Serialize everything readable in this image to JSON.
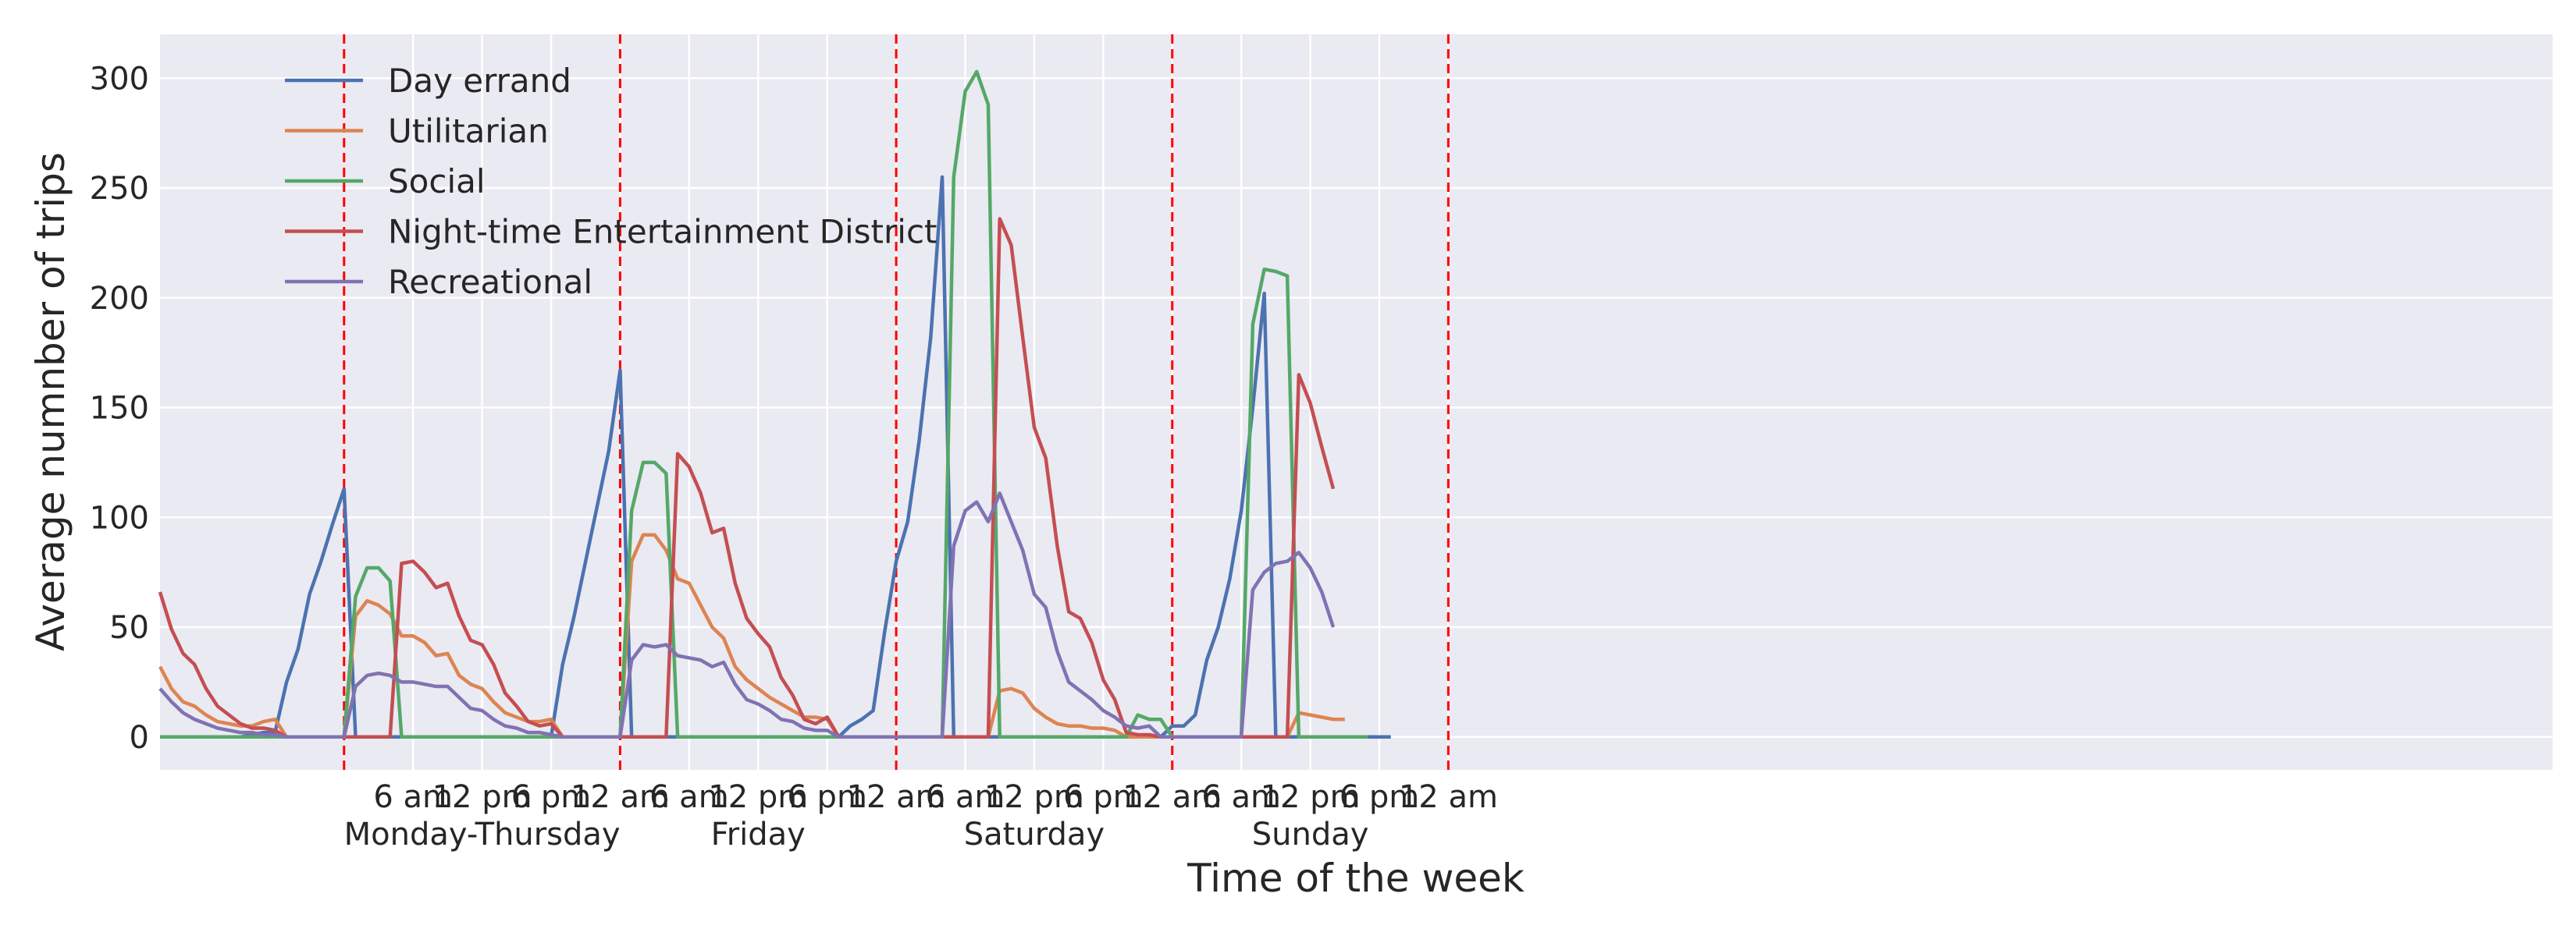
{
  "chart_data": {
    "type": "line",
    "xlabel": "Time of the week",
    "ylabel": "Average numnber of trips",
    "ylim": [
      -15,
      320
    ],
    "yticks": [
      0,
      50,
      100,
      150,
      200,
      250,
      300
    ],
    "x_range_hours": [
      -16,
      192
    ],
    "grid": true,
    "legend_position": "top-left",
    "hour_ticks": [
      {
        "hour": 6,
        "label": "6 am"
      },
      {
        "hour": 12,
        "label": "12 pm"
      },
      {
        "hour": 18,
        "label": "6 pm"
      },
      {
        "hour": 24,
        "label": "12 am"
      },
      {
        "hour": 30,
        "label": "6 am"
      },
      {
        "hour": 36,
        "label": "12 pm"
      },
      {
        "hour": 42,
        "label": "6 pm"
      },
      {
        "hour": 48,
        "label": "12 am"
      },
      {
        "hour": 54,
        "label": "6 am"
      },
      {
        "hour": 60,
        "label": "12 pm"
      },
      {
        "hour": 66,
        "label": "6 pm"
      },
      {
        "hour": 72,
        "label": "12 am"
      },
      {
        "hour": 78,
        "label": "6 am"
      },
      {
        "hour": 84,
        "label": "12 pm"
      },
      {
        "hour": 90,
        "label": "6 pm"
      },
      {
        "hour": 96,
        "label": "12 am"
      }
    ],
    "day_labels": [
      {
        "hour": 12,
        "label": "Monday-Thursday"
      },
      {
        "hour": 36,
        "label": "Friday"
      },
      {
        "hour": 60,
        "label": "Saturday"
      },
      {
        "hour": 84,
        "label": "Sunday"
      }
    ],
    "day_boundaries": [
      0,
      24,
      48,
      72,
      96
    ],
    "sample_step_hours": 1,
    "series": [
      {
        "name": "Day errand",
        "color": "#4c72b0",
        "values": [
          0,
          0,
          0,
          0,
          0,
          0,
          0,
          0,
          1,
          2,
          2,
          25,
          40,
          65,
          80,
          97,
          113,
          0,
          0,
          0,
          0,
          0,
          0,
          0,
          0,
          0,
          0,
          0,
          0,
          0,
          0,
          0,
          0,
          0,
          0,
          33,
          55,
          80,
          105,
          130,
          167,
          0,
          0,
          0,
          0,
          0,
          0,
          0,
          0,
          0,
          0,
          0,
          0,
          0,
          0,
          0,
          0,
          0,
          0,
          0,
          5,
          8,
          12,
          48,
          80,
          98,
          135,
          182,
          255,
          0,
          0,
          0,
          0,
          0,
          0,
          0,
          0,
          0,
          0,
          0,
          0,
          0,
          0,
          0,
          0,
          0,
          0,
          0,
          5,
          5,
          10,
          35,
          50,
          72,
          103,
          150,
          202,
          0,
          0,
          0,
          0,
          0,
          0,
          0,
          0,
          0,
          0,
          0
        ]
      },
      {
        "name": "Utilitarian",
        "color": "#dd8452",
        "values": [
          32,
          22,
          16,
          14,
          10,
          7,
          6,
          5,
          5,
          7,
          8,
          0,
          0,
          0,
          0,
          0,
          0,
          55,
          62,
          60,
          56,
          46,
          46,
          43,
          37,
          38,
          28,
          24,
          22,
          16,
          11,
          9,
          7,
          7,
          8,
          0,
          0,
          0,
          0,
          0,
          0,
          80,
          92,
          92,
          85,
          72,
          70,
          60,
          50,
          45,
          32,
          26,
          22,
          18,
          15,
          12,
          9,
          9,
          8,
          0,
          0,
          0,
          0,
          0,
          0,
          0,
          0,
          0,
          0,
          0,
          0,
          0,
          0,
          21,
          22,
          20,
          13,
          9,
          6,
          5,
          5,
          4,
          4,
          3,
          0,
          0,
          0,
          0,
          0,
          0,
          0,
          0,
          0,
          0,
          0,
          0,
          0,
          0,
          0,
          11,
          10,
          9,
          8,
          8
        ]
      },
      {
        "name": "Social",
        "color": "#55a868",
        "values": [
          0,
          0,
          0,
          0,
          0,
          0,
          0,
          0,
          0,
          0,
          0,
          0,
          0,
          0,
          0,
          0,
          0,
          64,
          77,
          77,
          71,
          0,
          0,
          0,
          0,
          0,
          0,
          0,
          0,
          0,
          0,
          0,
          0,
          0,
          0,
          0,
          0,
          0,
          0,
          0,
          0,
          103,
          125,
          125,
          120,
          0,
          0,
          0,
          0,
          0,
          0,
          0,
          0,
          0,
          0,
          0,
          0,
          0,
          0,
          0,
          0,
          0,
          0,
          0,
          0,
          0,
          0,
          0,
          0,
          255,
          294,
          303,
          288,
          0,
          0,
          0,
          0,
          0,
          0,
          0,
          0,
          0,
          0,
          0,
          0,
          10,
          8,
          8,
          0,
          0,
          0,
          0,
          0,
          0,
          0,
          188,
          213,
          212,
          210,
          0,
          0,
          0,
          0,
          0,
          0,
          0
        ]
      },
      {
        "name": "Night-time Entertainment District",
        "color": "#c44e52",
        "values": [
          66,
          49,
          38,
          33,
          22,
          14,
          10,
          6,
          4,
          4,
          3,
          0,
          0,
          0,
          0,
          0,
          0,
          0,
          0,
          0,
          0,
          79,
          80,
          75,
          68,
          70,
          55,
          44,
          42,
          33,
          20,
          14,
          7,
          5,
          6,
          0,
          0,
          0,
          0,
          0,
          0,
          0,
          0,
          0,
          0,
          129,
          123,
          111,
          93,
          95,
          70,
          54,
          47,
          41,
          27,
          19,
          8,
          6,
          9,
          0,
          0,
          0,
          0,
          0,
          0,
          0,
          0,
          0,
          0,
          0,
          0,
          0,
          0,
          236,
          224,
          182,
          141,
          127,
          87,
          57,
          54,
          43,
          26,
          17,
          2,
          1,
          1,
          0,
          0,
          0,
          0,
          0,
          0,
          0,
          0,
          0,
          0,
          0,
          0,
          165,
          152,
          132,
          113
        ]
      },
      {
        "name": "Recreational",
        "color": "#8172b3",
        "values": [
          22,
          16,
          11,
          8,
          6,
          4,
          3,
          2,
          2,
          1,
          1,
          0,
          0,
          0,
          0,
          0,
          0,
          23,
          28,
          29,
          28,
          25,
          25,
          24,
          23,
          23,
          18,
          13,
          12,
          8,
          5,
          4,
          2,
          2,
          1,
          0,
          0,
          0,
          0,
          0,
          0,
          35,
          42,
          41,
          42,
          37,
          36,
          35,
          32,
          34,
          24,
          17,
          15,
          12,
          8,
          7,
          4,
          3,
          3,
          0,
          0,
          0,
          0,
          0,
          0,
          0,
          0,
          0,
          0,
          87,
          103,
          107,
          98,
          111,
          98,
          85,
          65,
          59,
          39,
          25,
          21,
          17,
          12,
          9,
          5,
          4,
          5,
          0,
          0,
          0,
          0,
          0,
          0,
          0,
          0,
          67,
          75,
          79,
          80,
          84,
          77,
          66,
          50
        ]
      }
    ]
  }
}
